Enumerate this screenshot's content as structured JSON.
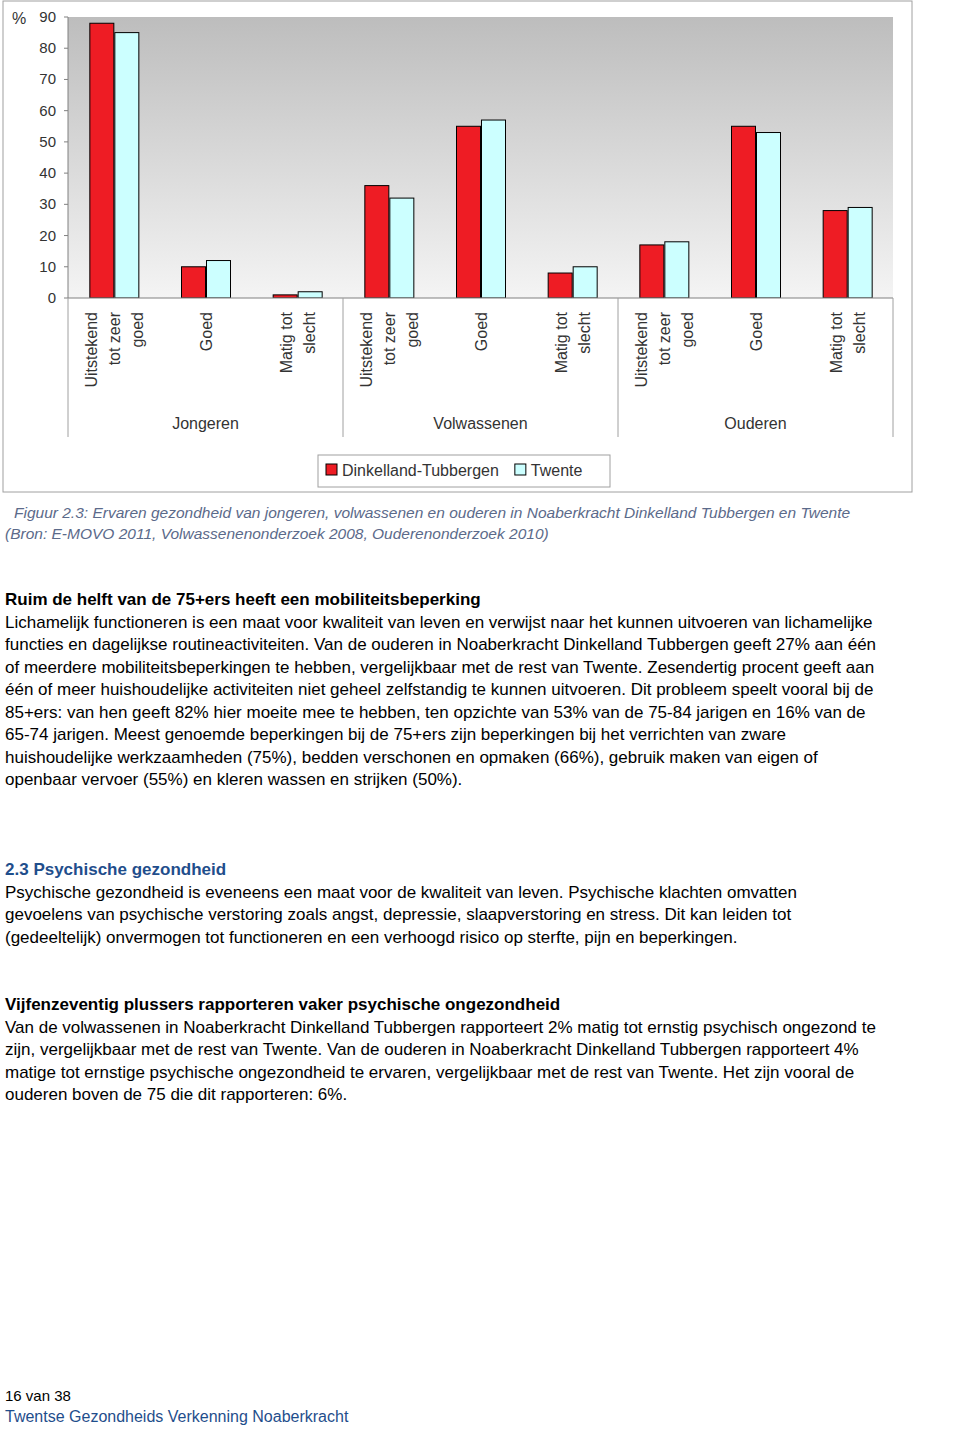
{
  "chart_data": {
    "type": "bar",
    "y_label": "%",
    "categories": [
      "Uitstekend tot zeer goed",
      "Goed",
      "Matig tot slecht",
      "Uitstekend tot zeer goed",
      "Goed",
      "Matig tot slecht",
      "Uitstekend tot zeer goed",
      "Goed",
      "Matig tot slecht"
    ],
    "groups": [
      "Jongeren",
      "Volwassenen",
      "Ouderen"
    ],
    "series": [
      {
        "name": "Dinkelland-Tubbergen",
        "color": "#ee1c24",
        "values": [
          88,
          10,
          1,
          36,
          55,
          8,
          17,
          55,
          28
        ]
      },
      {
        "name": "Twente",
        "color": "#ccffff",
        "values": [
          85,
          12,
          2,
          32,
          57,
          10,
          18,
          53,
          29
        ]
      }
    ],
    "ylim": [
      0,
      90
    ],
    "yticks": [
      0,
      10,
      20,
      30,
      40,
      50,
      60,
      70,
      80,
      90
    ],
    "grid": false,
    "legend": "bottom"
  },
  "caption": "Figuur 2.3: Ervaren gezondheid van jongeren, volwassenen en ouderen in Noaberkracht Dinkelland Tubbergen en Twente (Bron: E-MOVO 2011, Volwassenenonderzoek 2008, Ouderenonderzoek 2010)",
  "sections": [
    {
      "heading": "Ruim de helft van de 75+ers heeft een mobiliteitsbeperking",
      "paragraphs": [
        "Lichamelijk functioneren is een maat voor kwaliteit van leven en verwijst naar het kunnen uitvoeren van lichamelijke functies en dagelijkse routineactiviteiten. Van de ouderen in Noaberkracht Dinkelland Tubbergen geeft 27% aan één of meerdere mobiliteitsbeperkingen te hebben, vergelijkbaar met de rest van Twente. Zesendertig procent geeft aan één of meer huishoudelijke activiteiten niet geheel zelfstandig te kunnen uitvoeren. Dit probleem speelt vooral bij de 85+ers: van hen geeft 82% hier moeite mee te hebben, ten opzichte van 53% van de 75-84 jarigen en 16% van de 65-74 jarigen. Meest genoemde beperkingen bij de 75+ers zijn beperkingen bij het verrichten van zware huishoudelijke werkzaamheden (75%), bedden verschonen en opmaken (66%), gebruik maken van eigen of openbaar vervoer (55%) en kleren wassen en strijken (50%)."
      ]
    },
    {
      "number": "2.3",
      "heading": "Psychische gezondheid",
      "paragraphs": [
        "Psychische gezondheid is eveneens een maat voor de kwaliteit van leven. Psychische klachten omvatten gevoelens van psychische verstoring zoals angst, depressie, slaapverstoring en stress. Dit kan leiden tot (gedeeltelijk) onvermogen tot functioneren en een verhoogd risico op sterfte, pijn en beperkingen."
      ]
    },
    {
      "heading": "Vijfenzeventig plussers rapporteren vaker psychische ongezondheid",
      "paragraphs": [
        "Van de volwassenen in Noaberkracht Dinkelland Tubbergen rapporteert 2% matig tot ernstig psychisch ongezond te zijn, vergelijkbaar met de rest van Twente. Van de ouderen in Noaberkracht Dinkelland Tubbergen rapporteert 4% matige tot ernstige psychische ongezondheid te ervaren, vergelijkbaar met de rest van Twente. Het zijn vooral de ouderen boven de 75 die dit rapporteren: 6%."
      ]
    }
  ],
  "footer": {
    "page": "16 van 38",
    "title": "Twentse Gezondheids Verkenning Noaberkracht"
  }
}
